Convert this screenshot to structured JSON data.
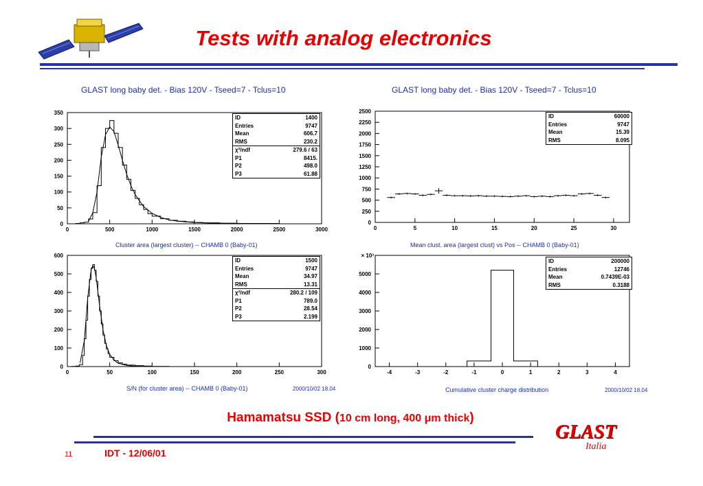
{
  "slide": {
    "title": "Tests with analog electronics",
    "subtitle_main": "Hamamatsu SSD (",
    "subtitle_detail": "10 cm long,  400 μm thick",
    "subtitle_close": ")",
    "page_number": "11",
    "footer_date": "IDT - 12/06/01",
    "logo_text": "GLAST",
    "logo_sub": "Italia",
    "colors": {
      "title_red": "#e60000",
      "rule_blue": "#1f35a8",
      "plot_blue": "#1a2fb0"
    },
    "icon": "satellite-icon"
  },
  "chart_data": [
    {
      "id": "p1",
      "type": "histogram",
      "title": "GLAST long baby det. - Bias 120V - Tseed=7 - Tclus=10",
      "xlabel": "Cluster area (largest cluster) -- CHAMB 0 (Baby-01)",
      "date": "",
      "xlim": [
        0,
        3000
      ],
      "ylim": [
        0,
        350
      ],
      "xticks": [
        "0",
        "500",
        "1000",
        "1500",
        "2000",
        "2500",
        "3000"
      ],
      "yticks": [
        "0",
        "50",
        "100",
        "150",
        "200",
        "250",
        "300",
        "350"
      ],
      "hist_x": [
        0,
        50,
        100,
        150,
        200,
        250,
        300,
        350,
        400,
        450,
        500,
        550,
        600,
        650,
        700,
        750,
        800,
        850,
        900,
        950,
        1000,
        1100,
        1200,
        1300,
        1400,
        1500,
        1600,
        1800,
        2000,
        2200,
        2500,
        3000
      ],
      "hist_y": [
        0,
        0,
        1,
        3,
        5,
        15,
        35,
        120,
        240,
        300,
        325,
        285,
        240,
        185,
        140,
        105,
        80,
        60,
        45,
        32,
        24,
        16,
        11,
        8,
        6,
        4,
        3,
        2,
        1,
        1,
        0,
        0
      ],
      "fit_x": [
        250,
        300,
        350,
        400,
        450,
        500,
        550,
        600,
        650,
        700,
        750,
        800,
        900,
        1000,
        1100,
        1200,
        1300,
        1500,
        1800,
        2200
      ],
      "fit_y": [
        8,
        35,
        100,
        210,
        280,
        305,
        290,
        248,
        200,
        156,
        120,
        92,
        54,
        33,
        20,
        12,
        8,
        4,
        1,
        0
      ],
      "stats": [
        {
          "label": "ID",
          "value": "1400"
        },
        {
          "label": "Entries",
          "value": "9747"
        },
        {
          "label": "Mean",
          "value": "606.7"
        },
        {
          "label": "RMS",
          "value": "230.2"
        }
      ],
      "fit_stats": [
        {
          "label": "χ²/ndf",
          "value": "279.6   /   63"
        },
        {
          "label": "P1",
          "value": "8415."
        },
        {
          "label": "P2",
          "value": "498.0"
        },
        {
          "label": "P3",
          "value": "61.88"
        }
      ]
    },
    {
      "id": "p2",
      "type": "profile",
      "title": "GLAST long baby det. - Bias 120V - Tseed=7 - Tclus=10",
      "xlabel": "Mean clust. area (largest clust) vs Pos -- CHAMB 0 (Baby-01)",
      "date": "",
      "xlim": [
        0,
        32
      ],
      "ylim": [
        0,
        2500
      ],
      "xticks": [
        "0",
        "5",
        "10",
        "15",
        "20",
        "25",
        "30"
      ],
      "yticks": [
        "0",
        "250",
        "500",
        "750",
        "1000",
        "1250",
        "1500",
        "1750",
        "2000",
        "2250",
        "2500"
      ],
      "x": [
        2,
        3,
        4,
        5,
        6,
        7,
        8,
        9,
        10,
        11,
        12,
        13,
        14,
        15,
        16,
        17,
        18,
        19,
        20,
        21,
        22,
        23,
        24,
        25,
        26,
        27,
        28,
        29
      ],
      "y": [
        560,
        640,
        650,
        640,
        610,
        630,
        710,
        610,
        600,
        600,
        595,
        600,
        590,
        590,
        585,
        580,
        590,
        600,
        580,
        590,
        580,
        600,
        610,
        600,
        640,
        650,
        610,
        560
      ],
      "yerr": [
        20,
        20,
        20,
        20,
        20,
        20,
        60,
        20,
        20,
        20,
        20,
        20,
        20,
        20,
        20,
        20,
        20,
        20,
        20,
        20,
        20,
        20,
        20,
        20,
        20,
        20,
        20,
        20
      ],
      "stats": [
        {
          "label": "ID",
          "value": "60000"
        },
        {
          "label": "Entries",
          "value": "9747"
        },
        {
          "label": "Mean",
          "value": "15.39"
        },
        {
          "label": "RMS",
          "value": "8.095"
        }
      ],
      "fit_stats": []
    },
    {
      "id": "p3",
      "type": "histogram",
      "title": "",
      "xlabel": "S/N (for cluster area) -- CHAMB 0 (Baby-01)",
      "date": "2000/10/02   18.04",
      "xlim": [
        0,
        300
      ],
      "ylim": [
        0,
        600
      ],
      "xticks": [
        "0",
        "50",
        "100",
        "150",
        "200",
        "250",
        "300"
      ],
      "yticks": [
        "0",
        "100",
        "200",
        "300",
        "400",
        "500",
        "600"
      ],
      "hist_x": [
        0,
        5,
        10,
        14,
        18,
        20,
        22,
        24,
        26,
        28,
        30,
        32,
        34,
        36,
        38,
        40,
        42,
        44,
        46,
        48,
        50,
        55,
        60,
        65,
        70,
        80,
        90,
        100,
        120
      ],
      "hist_y": [
        0,
        1,
        3,
        10,
        60,
        150,
        250,
        380,
        470,
        530,
        550,
        520,
        460,
        380,
        300,
        230,
        170,
        125,
        95,
        70,
        50,
        32,
        20,
        13,
        8,
        5,
        3,
        1,
        0
      ],
      "fit_x": [
        15,
        20,
        24,
        28,
        30,
        32,
        34,
        38,
        42,
        46,
        50,
        55,
        60,
        70,
        80,
        100
      ],
      "fit_y": [
        20,
        140,
        370,
        520,
        545,
        530,
        480,
        330,
        200,
        115,
        65,
        35,
        18,
        6,
        2,
        0
      ],
      "stats": [
        {
          "label": "ID",
          "value": "1500"
        },
        {
          "label": "Entries",
          "value": "9747"
        },
        {
          "label": "Mean",
          "value": "34.97"
        },
        {
          "label": "RMS",
          "value": "13.31"
        }
      ],
      "fit_stats": [
        {
          "label": "χ²/ndf",
          "value": "280.2   /   109"
        },
        {
          "label": "P1",
          "value": "789.0"
        },
        {
          "label": "P2",
          "value": "28.54"
        },
        {
          "label": "P3",
          "value": "2.199"
        }
      ]
    },
    {
      "id": "p4",
      "type": "histogram",
      "title": "",
      "xlabel": "Cumulative cluster charge distribution",
      "date": "2000/10/02   18.04",
      "xlim": [
        -4.5,
        4.5
      ],
      "ylim": [
        0,
        6000
      ],
      "yunit": "× 10³",
      "xticks": [
        "-4",
        "-3",
        "-2",
        "-1",
        "0",
        "1",
        "2",
        "3",
        "4"
      ],
      "yticks": [
        "0",
        "1000",
        "2000",
        "3000",
        "4000",
        "5000"
      ],
      "hist_x": [
        -4.5,
        -1.25,
        -0.4,
        0.4,
        1.25,
        4.5
      ],
      "hist_y": [
        0,
        300,
        5200,
        300,
        0
      ],
      "fit_x": [],
      "fit_y": [],
      "stats": [
        {
          "label": "ID",
          "value": "200000"
        },
        {
          "label": "Entries",
          "value": "12746"
        },
        {
          "label": "Mean",
          "value": "0.7439E-03"
        },
        {
          "label": "RMS",
          "value": "0.3188"
        }
      ],
      "fit_stats": []
    }
  ]
}
